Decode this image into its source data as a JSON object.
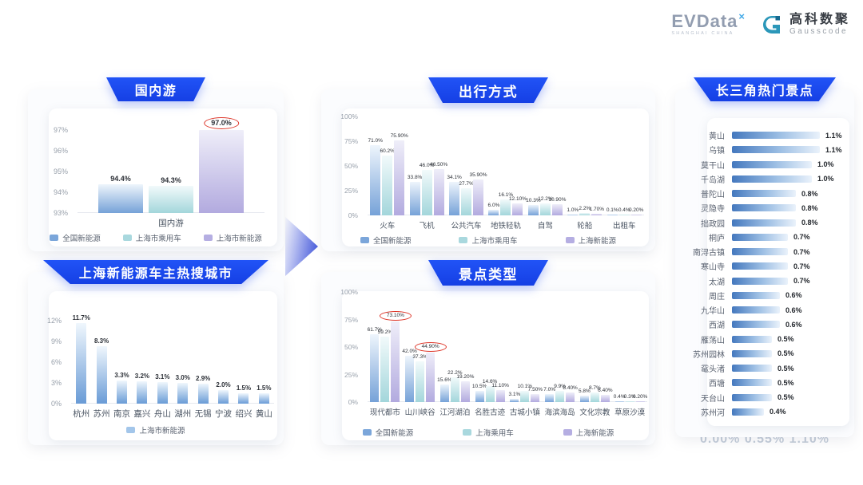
{
  "header": {
    "brand_left": "EVData",
    "brand_sup": "×",
    "brand_sub": "SHANGHAI CHINA",
    "brand_cn": "高科数聚",
    "brand_en": "Gausscode"
  },
  "ghost_text": "0.00%  0.55%  1.10%",
  "colors": {
    "banner_blue": "#1a46ed",
    "series_national_nev": "#7ba6da",
    "series_shanghai_pv": "#a9d8de",
    "series_shanghai_nev": "#b5aee2",
    "hbar_blue": "#4478be",
    "highlight_red": "#dd3326"
  },
  "chart_data": [
    {
      "id": "domestic-travel",
      "type": "bar",
      "title": "国内游",
      "categories": [
        "国内游"
      ],
      "ylim": [
        93,
        97
      ],
      "yticks": [
        93,
        94,
        95,
        96,
        97
      ],
      "ytick_suffix": "%",
      "legend_position": "bottom",
      "series": [
        {
          "name": "全国新能源",
          "swatch": "#7ba6da",
          "grad": [
            "#eef5fc",
            "#76a2d8"
          ],
          "values": [
            94.4
          ],
          "labels": [
            "94.4%"
          ]
        },
        {
          "name": "上海市乘用车",
          "swatch": "#a9d8de",
          "grad": [
            "#f2fafb",
            "#a3d6db"
          ],
          "values": [
            94.3
          ],
          "labels": [
            "94.3%"
          ]
        },
        {
          "name": "上海市新能源",
          "swatch": "#b5aee2",
          "grad": [
            "#efeef9",
            "#b2aadf"
          ],
          "values": [
            97.0
          ],
          "labels": [
            "97.0%"
          ],
          "circled": [
            0
          ]
        }
      ]
    },
    {
      "id": "shanghai-nev-hot-search-cities",
      "type": "bar",
      "title": "上海新能源车主热搜城市",
      "categories": [
        "杭州",
        "苏州",
        "南京",
        "嘉兴",
        "舟山",
        "湖州",
        "无锡",
        "宁波",
        "绍兴",
        "黄山"
      ],
      "ylim": [
        0,
        12
      ],
      "yticks": [
        0,
        3,
        6,
        9,
        12
      ],
      "ytick_suffix": "%",
      "legend_position": "bottom",
      "series": [
        {
          "name": "上海市新能源",
          "swatch": "#a3c6ea",
          "grad": [
            "#f0f7fd",
            "#699bd6"
          ],
          "values": [
            11.7,
            8.3,
            3.3,
            3.2,
            3.1,
            3.0,
            2.9,
            2.0,
            1.5,
            1.5
          ],
          "labels": [
            "11.7%",
            "8.3%",
            "3.3%",
            "3.2%",
            "3.1%",
            "3.0%",
            "2.9%",
            "2.0%",
            "1.5%",
            "1.5%"
          ]
        }
      ]
    },
    {
      "id": "travel-modes",
      "type": "bar",
      "title": "出行方式",
      "categories": [
        "火车",
        "飞机",
        "公共汽车",
        "地铁轻轨",
        "自驾",
        "轮船",
        "出租车"
      ],
      "ylim": [
        0,
        100
      ],
      "yticks": [
        0,
        25,
        50,
        75,
        100
      ],
      "ytick_suffix": "%",
      "legend_position": "bottom",
      "series": [
        {
          "name": "全国新能源",
          "swatch": "#7ba6da",
          "grad": [
            "#eef5fc",
            "#76a2d8"
          ],
          "values": [
            71.0,
            33.8,
            34.1,
            6.0,
            10.3,
            1.0,
            0.1
          ],
          "labels": [
            "71.0%",
            "33.8%",
            "34.1%",
            "6.0%",
            "10.3%",
            "1.0%",
            "0.1%"
          ]
        },
        {
          "name": "上海市乘用车",
          "swatch": "#a9d8de",
          "grad": [
            "#f2fafb",
            "#a3d6db"
          ],
          "values": [
            60.2,
            46.0,
            27.7,
            16.1,
            12.2,
            2.2,
            0.4
          ],
          "labels": [
            "60.2%",
            "46.0%",
            "27.7%",
            "16.1%",
            "12.2%",
            "2.2%",
            "0.4%"
          ]
        },
        {
          "name": "上海新能源",
          "swatch": "#b5aee2",
          "grad": [
            "#efeef9",
            "#b2aadf"
          ],
          "values": [
            75.9,
            46.5,
            35.9,
            12.1,
            10.9,
            1.7,
            0.2
          ],
          "labels": [
            "75.90%",
            "46.50%",
            "35.90%",
            "12.10%",
            "10.90%",
            "1.70%",
            "0.20%"
          ]
        }
      ]
    },
    {
      "id": "attraction-types",
      "type": "bar",
      "title": "景点类型",
      "categories": [
        "现代都市",
        "山川峡谷",
        "江河湖泊",
        "名胜古迹",
        "古城小镇",
        "海滨海岛",
        "文化宗教",
        "草原沙漠"
      ],
      "ylim": [
        0,
        100
      ],
      "yticks": [
        0,
        25,
        50,
        75,
        100
      ],
      "ytick_suffix": "%",
      "legend_position": "bottom",
      "series": [
        {
          "name": "全国新能源",
          "swatch": "#7ba6da",
          "grad": [
            "#eef5fc",
            "#76a2d8"
          ],
          "values": [
            61.7,
            42.0,
            15.6,
            10.5,
            3.1,
            7.0,
            5.8,
            0.4
          ],
          "labels": [
            "61.7%",
            "42.0%",
            "15.6%",
            "10.5%",
            "3.1%",
            "7.0%",
            "5.8%",
            "0.4%"
          ]
        },
        {
          "name": "上海乘用车",
          "swatch": "#a9d8de",
          "grad": [
            "#f2fafb",
            "#a3d6db"
          ],
          "values": [
            59.2,
            37.3,
            22.2,
            14.6,
            10.1,
            9.9,
            8.7,
            0.3
          ],
          "labels": [
            "59.2%",
            "37.3%",
            "22.2%",
            "14.6%",
            "10.1%",
            "9.9%",
            "8.7%",
            "0.3%"
          ]
        },
        {
          "name": "上海新能源",
          "swatch": "#b5aee2",
          "grad": [
            "#efeef9",
            "#b2aadf"
          ],
          "values": [
            73.1,
            44.9,
            19.2,
            11.1,
            7.5,
            8.4,
            6.4,
            0.2
          ],
          "labels": [
            "73.10%",
            "44.90%",
            "19.20%",
            "11.10%",
            "7.50%",
            "8.40%",
            "6.40%",
            "0.20%"
          ],
          "circled": [
            0,
            1
          ]
        }
      ]
    },
    {
      "id": "yangtze-delta-hot-spots",
      "type": "bar-horizontal",
      "title": "长三角热门景点",
      "categories": [
        "黄山",
        "乌镇",
        "莫干山",
        "千岛湖",
        "普陀山",
        "灵隐寺",
        "拙政园",
        "桐庐",
        "南浔古镇",
        "寒山寺",
        "太湖",
        "周庄",
        "九华山",
        "西湖",
        "雁荡山",
        "苏州园林",
        "鼋头渚",
        "西塘",
        "天台山",
        "苏州河"
      ],
      "values": [
        1.1,
        1.1,
        1.0,
        1.0,
        0.8,
        0.8,
        0.8,
        0.7,
        0.7,
        0.7,
        0.7,
        0.6,
        0.6,
        0.6,
        0.5,
        0.5,
        0.5,
        0.5,
        0.5,
        0.4
      ],
      "labels": [
        "1.1%",
        "1.1%",
        "1.0%",
        "1.0%",
        "0.8%",
        "0.8%",
        "0.8%",
        "0.7%",
        "0.7%",
        "0.7%",
        "0.7%",
        "0.6%",
        "0.6%",
        "0.6%",
        "0.5%",
        "0.5%",
        "0.5%",
        "0.5%",
        "0.5%",
        "0.4%"
      ],
      "xlim": [
        0,
        1.15
      ]
    }
  ]
}
